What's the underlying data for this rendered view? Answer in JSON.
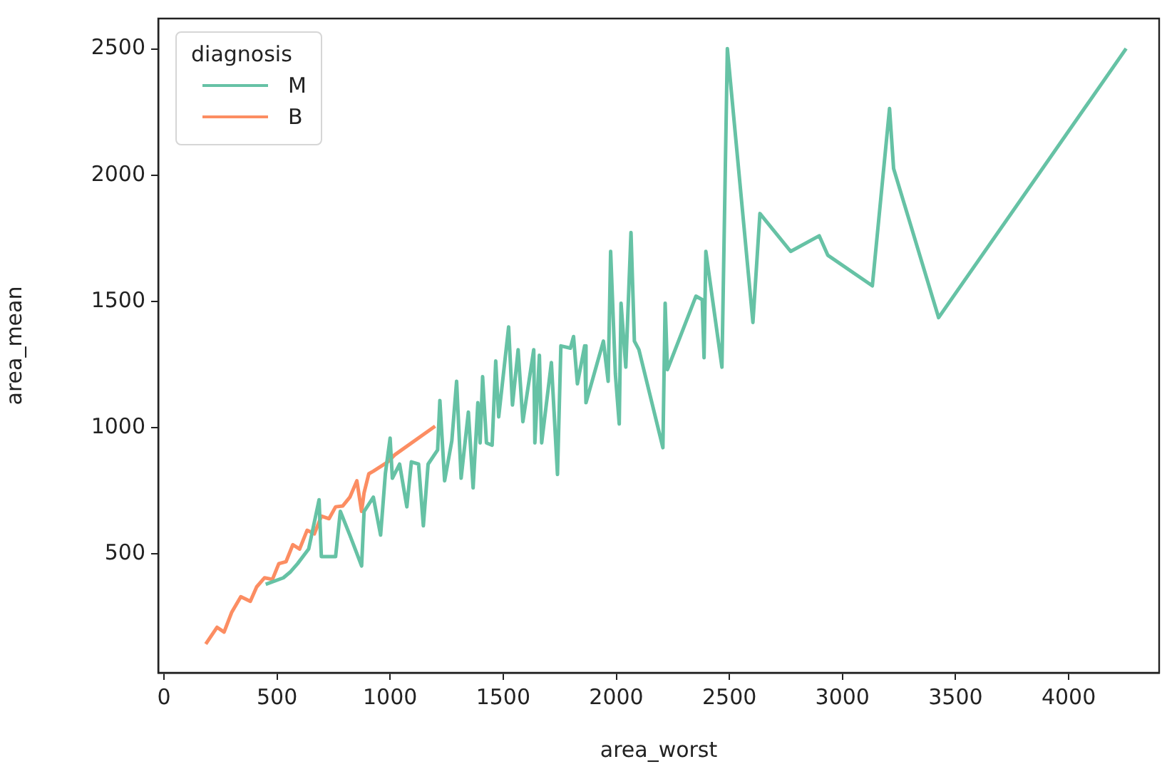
{
  "chart_data": {
    "type": "line",
    "xlabel": "area_worst",
    "ylabel": "area_mean",
    "legend_title": "diagnosis",
    "legend": "top left",
    "grid": false,
    "xlim": [
      -25,
      4400
    ],
    "xticks": [
      0,
      500,
      1000,
      1500,
      2000,
      2500,
      3000,
      3500,
      4000
    ],
    "ylim": [
      30,
      2620
    ],
    "yticks": [
      500,
      1000,
      1500,
      2000,
      2500
    ],
    "series": [
      {
        "name": "M",
        "color": "#66c2a5",
        "x": [
          450,
          528,
          560,
          591,
          640,
          686,
          696,
          759,
          780,
          822,
          874,
          885,
          926,
          958,
          979,
          1000,
          1010,
          1042,
          1074,
          1094,
          1126,
          1147,
          1168,
          1210,
          1220,
          1241,
          1273,
          1294,
          1314,
          1346,
          1367,
          1388,
          1398,
          1409,
          1426,
          1451,
          1467,
          1480,
          1524,
          1541,
          1566,
          1587,
          1635,
          1640,
          1660,
          1670,
          1713,
          1740,
          1755,
          1797,
          1811,
          1828,
          1860,
          1866,
          1943,
          1964,
          1975,
          1996,
          2013,
          2021,
          2042,
          2065,
          2080,
          2100,
          2206,
          2216,
          2226,
          2352,
          2380,
          2388,
          2396,
          2467,
          2491,
          2604,
          2635,
          2771,
          2897,
          2935,
          3132,
          3208,
          3226,
          3425,
          4254
        ],
        "values": [
          380,
          406,
          430,
          462,
          520,
          715,
          490,
          490,
          669,
          575,
          453,
          669,
          725,
          575,
          818,
          959,
          800,
          856,
          687,
          865,
          856,
          612,
          856,
          912,
          1108,
          790,
          949,
          1184,
          800,
          1062,
          762,
          1099,
          940,
          1202,
          940,
          931,
          1264,
          1043,
          1399,
          1090,
          1309,
          1024,
          1309,
          940,
          1287,
          940,
          1258,
          815,
          1324,
          1315,
          1361,
          1174,
          1324,
          1099,
          1343,
          1184,
          1698,
          1212,
          1015,
          1493,
          1240,
          1773,
          1343,
          1309,
          921,
          1493,
          1230,
          1521,
          1507,
          1277,
          1698,
          1240,
          2501,
          1417,
          1848,
          1698,
          1760,
          1683,
          1562,
          2264,
          2026,
          1436,
          2501
        ]
      },
      {
        "name": "B",
        "color": "#fc8d62",
        "x": [
          185,
          235,
          266,
          300,
          340,
          382,
          410,
          445,
          480,
          508,
          540,
          570,
          600,
          633,
          665,
          696,
          730,
          759,
          790,
          822,
          853,
          874,
          885,
          906,
          926,
          990,
          1021,
          1199
        ],
        "values": [
          144,
          210,
          191,
          270,
          331,
          313,
          370,
          406,
          400,
          462,
          470,
          537,
          520,
          594,
          580,
          650,
          640,
          687,
          690,
          725,
          790,
          669,
          743,
          818,
          828,
          865,
          893,
          1006
        ]
      }
    ]
  }
}
